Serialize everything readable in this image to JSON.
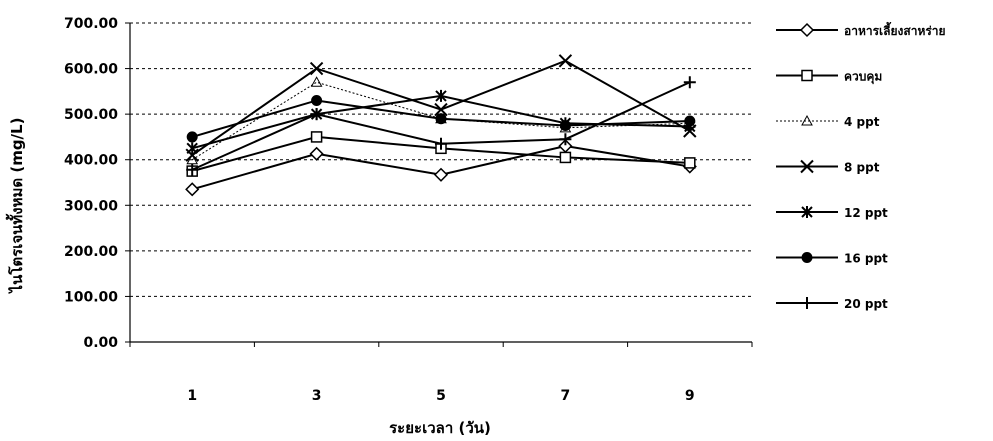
{
  "chart_data": {
    "type": "line",
    "title": "",
    "xlabel": "ระยะเวลา (วัน)",
    "ylabel": "ไนโตรเจนทั้งหมด (mg/L)",
    "categories": [
      "1",
      "3",
      "5",
      "7",
      "9"
    ],
    "ylim": [
      0,
      700
    ],
    "yticks": [
      "0.00",
      "100.00",
      "200.00",
      "300.00",
      "400.00",
      "500.00",
      "600.00",
      "700.00"
    ],
    "grid": true,
    "legend_position": "right",
    "series": [
      {
        "name": "อาหารเลี้ยงสาหร่าย",
        "marker": "diamond",
        "dash": "solid",
        "values": [
          335,
          413,
          367,
          430,
          385
        ]
      },
      {
        "name": "ควบคุม",
        "marker": "square",
        "dash": "solid",
        "values": [
          375,
          450,
          425,
          405,
          393
        ]
      },
      {
        "name": "4 ppt",
        "marker": "triangle",
        "dash": "dotted",
        "values": [
          400,
          570,
          490,
          470,
          480
        ]
      },
      {
        "name": "8 ppt",
        "marker": "x",
        "dash": "solid",
        "values": [
          410,
          600,
          510,
          617,
          463
        ]
      },
      {
        "name": "12 ppt",
        "marker": "asterisk",
        "dash": "solid",
        "values": [
          425,
          500,
          540,
          480,
          473
        ]
      },
      {
        "name": "16 ppt",
        "marker": "circle",
        "dash": "solid",
        "values": [
          450,
          530,
          490,
          475,
          485
        ]
      },
      {
        "name": "20 ppt",
        "marker": "plus",
        "dash": "solid",
        "values": [
          378,
          500,
          435,
          445,
          570
        ]
      }
    ]
  }
}
